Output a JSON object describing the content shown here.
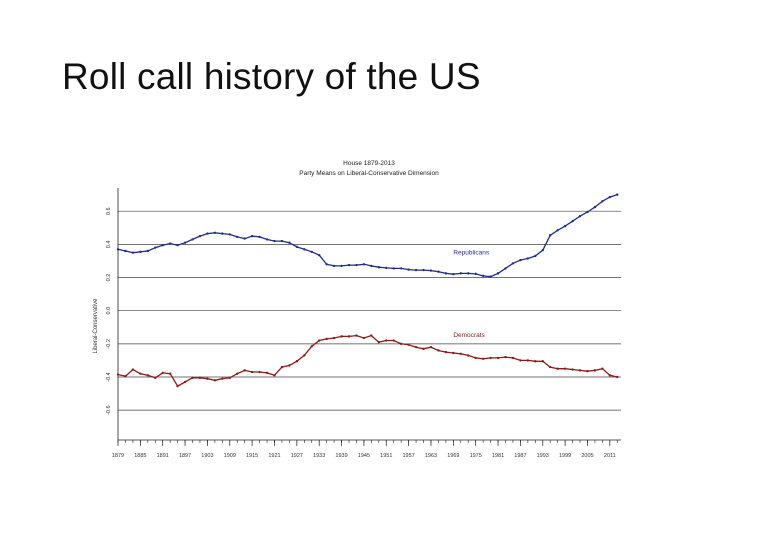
{
  "slide": {
    "title": "Roll call history of the US"
  },
  "chart_data": {
    "type": "line",
    "title": "House 1879-2013",
    "subtitle": "Party Means on Liberal-Conservative Dimension",
    "ylabel": "Liberal-Conservative",
    "xlabel": "",
    "xlim": [
      1879,
      2014
    ],
    "ylim": [
      -0.78,
      0.74
    ],
    "grid": true,
    "x_ticks": [
      1879,
      1885,
      1891,
      1897,
      1903,
      1909,
      1915,
      1921,
      1927,
      1933,
      1939,
      1945,
      1951,
      1957,
      1963,
      1969,
      1975,
      1981,
      1987,
      1993,
      1999,
      2005,
      2011
    ],
    "y_ticks": [
      0.6,
      0.4,
      0.2,
      0.0,
      -0.2,
      -0.4,
      -0.6
    ],
    "y_tick_labels": [
      "0.6",
      "0.4",
      "0.2",
      "0.0",
      "-0.2",
      "-0.4",
      "-0.6"
    ],
    "x": [
      1879,
      1881,
      1883,
      1885,
      1887,
      1889,
      1891,
      1893,
      1895,
      1897,
      1899,
      1901,
      1903,
      1905,
      1907,
      1909,
      1911,
      1913,
      1915,
      1917,
      1919,
      1921,
      1923,
      1925,
      1927,
      1929,
      1931,
      1933,
      1935,
      1937,
      1939,
      1941,
      1943,
      1945,
      1947,
      1949,
      1951,
      1953,
      1955,
      1957,
      1959,
      1961,
      1963,
      1965,
      1967,
      1969,
      1971,
      1973,
      1975,
      1977,
      1979,
      1981,
      1983,
      1985,
      1987,
      1989,
      1991,
      1993,
      1995,
      1997,
      1999,
      2001,
      2003,
      2005,
      2007,
      2009,
      2011,
      2013
    ],
    "series": [
      {
        "name": "Republicans",
        "color": "#1f2d8a",
        "values": [
          0.37,
          0.36,
          0.35,
          0.355,
          0.36,
          0.38,
          0.395,
          0.405,
          0.395,
          0.41,
          0.43,
          0.45,
          0.465,
          0.47,
          0.465,
          0.46,
          0.445,
          0.435,
          0.45,
          0.445,
          0.43,
          0.42,
          0.42,
          0.41,
          0.385,
          0.37,
          0.355,
          0.335,
          0.28,
          0.27,
          0.27,
          0.275,
          0.275,
          0.28,
          0.27,
          0.262,
          0.258,
          0.255,
          0.255,
          0.248,
          0.245,
          0.245,
          0.242,
          0.235,
          0.225,
          0.22,
          0.225,
          0.225,
          0.222,
          0.21,
          0.205,
          0.225,
          0.255,
          0.285,
          0.305,
          0.315,
          0.33,
          0.365,
          0.455,
          0.485,
          0.51,
          0.54,
          0.57,
          0.595,
          0.625,
          0.66,
          0.685,
          0.7
        ]
      },
      {
        "name": "Democrats",
        "color": "#8b1a1a",
        "values": [
          -0.385,
          -0.395,
          -0.355,
          -0.38,
          -0.39,
          -0.405,
          -0.375,
          -0.38,
          -0.455,
          -0.43,
          -0.405,
          -0.405,
          -0.41,
          -0.42,
          -0.41,
          -0.405,
          -0.38,
          -0.36,
          -0.37,
          -0.37,
          -0.375,
          -0.39,
          -0.34,
          -0.33,
          -0.305,
          -0.27,
          -0.215,
          -0.18,
          -0.17,
          -0.165,
          -0.155,
          -0.155,
          -0.15,
          -0.165,
          -0.15,
          -0.19,
          -0.18,
          -0.18,
          -0.2,
          -0.205,
          -0.22,
          -0.23,
          -0.22,
          -0.24,
          -0.25,
          -0.255,
          -0.26,
          -0.27,
          -0.285,
          -0.29,
          -0.285,
          -0.285,
          -0.28,
          -0.285,
          -0.3,
          -0.3,
          -0.305,
          -0.305,
          -0.34,
          -0.35,
          -0.35,
          -0.355,
          -0.36,
          -0.365,
          -0.36,
          -0.35,
          -0.39,
          -0.4
        ]
      }
    ],
    "annotations": [
      {
        "text": "Republicans",
        "x": 1969,
        "y": 0.34,
        "color": "#1f2d8a"
      },
      {
        "text": "Democrats",
        "x": 1969,
        "y": -0.16,
        "color": "#8b1a1a"
      }
    ]
  }
}
